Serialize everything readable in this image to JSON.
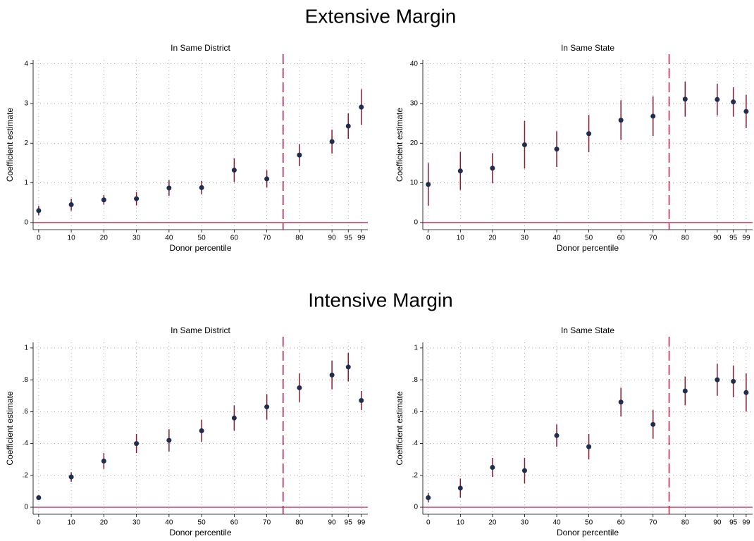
{
  "headings": [
    "Extensive Margin",
    "Intensive Margin"
  ],
  "chart_data": [
    {
      "type": "scatter",
      "title": "In Same District",
      "x_label": "Donor percentile",
      "y_label": "Coefficient estimate",
      "x": [
        0,
        10,
        20,
        30,
        40,
        50,
        60,
        70,
        80,
        90,
        95,
        99
      ],
      "series": [
        {
          "color": "#1f2d4e",
          "error_color": "#8b1a2e",
          "values": [
            0.3,
            0.45,
            0.57,
            0.6,
            0.87,
            0.88,
            1.32,
            1.1,
            1.7,
            2.04,
            2.43,
            2.91
          ],
          "errors": [
            0.12,
            0.15,
            0.12,
            0.17,
            0.2,
            0.17,
            0.3,
            0.22,
            0.28,
            0.3,
            0.32,
            0.45
          ]
        }
      ],
      "xlim": [
        -1.7,
        101
      ],
      "xticks": [
        0,
        10,
        20,
        30,
        40,
        50,
        60,
        70,
        80,
        90,
        95,
        99
      ],
      "ylim": [
        -0.18,
        4.1
      ],
      "yticks": [
        0,
        1,
        2,
        3,
        4
      ],
      "grid": true,
      "vline": 75,
      "hline": 0,
      "ref_color": "#c0143c"
    },
    {
      "type": "scatter",
      "title": "In Same State",
      "x_label": "Donor percentile",
      "y_label": "Coefficient estimate",
      "x": [
        0,
        10,
        20,
        30,
        40,
        50,
        60,
        70,
        80,
        90,
        95,
        99
      ],
      "series": [
        {
          "color": "#1f2d4e",
          "error_color": "#8b1a2e",
          "values": [
            9.6,
            13.0,
            13.7,
            19.6,
            18.5,
            22.4,
            25.8,
            26.8,
            31.1,
            31.0,
            30.4,
            28.0
          ],
          "errors": [
            5.4,
            4.8,
            3.8,
            6.0,
            4.5,
            4.7,
            5.0,
            5.0,
            4.4,
            4.0,
            3.7,
            4.2
          ]
        }
      ],
      "xlim": [
        -1.7,
        101
      ],
      "xticks": [
        0,
        10,
        20,
        30,
        40,
        50,
        60,
        70,
        80,
        90,
        95,
        99
      ],
      "ylim": [
        -1.8,
        41
      ],
      "yticks": [
        0,
        10,
        20,
        30,
        40
      ],
      "grid": true,
      "vline": 75,
      "hline": 0,
      "ref_color": "#c0143c"
    },
    {
      "type": "scatter",
      "title": "In Same District",
      "x_label": "Donor percentile",
      "y_label": "Coefficient estimate",
      "x": [
        0,
        10,
        20,
        30,
        40,
        50,
        60,
        70,
        80,
        90,
        95,
        99
      ],
      "series": [
        {
          "color": "#1f2d4e",
          "error_color": "#8b1a2e",
          "values": [
            0.06,
            0.19,
            0.29,
            0.4,
            0.42,
            0.48,
            0.56,
            0.63,
            0.75,
            0.83,
            0.88,
            0.67
          ],
          "errors": [
            0.01,
            0.03,
            0.05,
            0.06,
            0.07,
            0.07,
            0.08,
            0.08,
            0.09,
            0.09,
            0.09,
            0.06
          ]
        }
      ],
      "xlim": [
        -1.7,
        101
      ],
      "xticks": [
        0,
        10,
        20,
        30,
        40,
        50,
        60,
        70,
        80,
        90,
        95,
        99
      ],
      "ylim": [
        -0.044,
        1.035
      ],
      "yticks": [
        0,
        {
          "value": 0.2,
          "label": ".2"
        },
        {
          "value": 0.4,
          "label": ".4"
        },
        {
          "value": 0.6,
          "label": ".6"
        },
        {
          "value": 0.8,
          "label": ".8"
        },
        1
      ],
      "grid": true,
      "vline": 75,
      "hline": 0,
      "ref_color": "#c0143c"
    },
    {
      "type": "scatter",
      "title": "In Same State",
      "x_label": "Donor percentile",
      "y_label": "Coefficient estimate",
      "x": [
        0,
        10,
        20,
        30,
        40,
        50,
        60,
        70,
        80,
        90,
        95,
        99
      ],
      "series": [
        {
          "color": "#1f2d4e",
          "error_color": "#8b1a2e",
          "values": [
            0.06,
            0.12,
            0.25,
            0.23,
            0.45,
            0.38,
            0.66,
            0.52,
            0.73,
            0.8,
            0.79,
            0.72
          ],
          "errors": [
            0.03,
            0.06,
            0.06,
            0.08,
            0.07,
            0.08,
            0.09,
            0.09,
            0.09,
            0.1,
            0.1,
            0.12
          ]
        }
      ],
      "xlim": [
        -1.7,
        101
      ],
      "xticks": [
        0,
        10,
        20,
        30,
        40,
        50,
        60,
        70,
        80,
        90,
        95,
        99
      ],
      "ylim": [
        -0.044,
        1.035
      ],
      "yticks": [
        0,
        {
          "value": 0.2,
          "label": ".2"
        },
        {
          "value": 0.4,
          "label": ".4"
        },
        {
          "value": 0.6,
          "label": ".6"
        },
        {
          "value": 0.8,
          "label": ".8"
        },
        1
      ],
      "grid": true,
      "vline": 75,
      "hline": 0,
      "ref_color": "#c0143c"
    }
  ]
}
